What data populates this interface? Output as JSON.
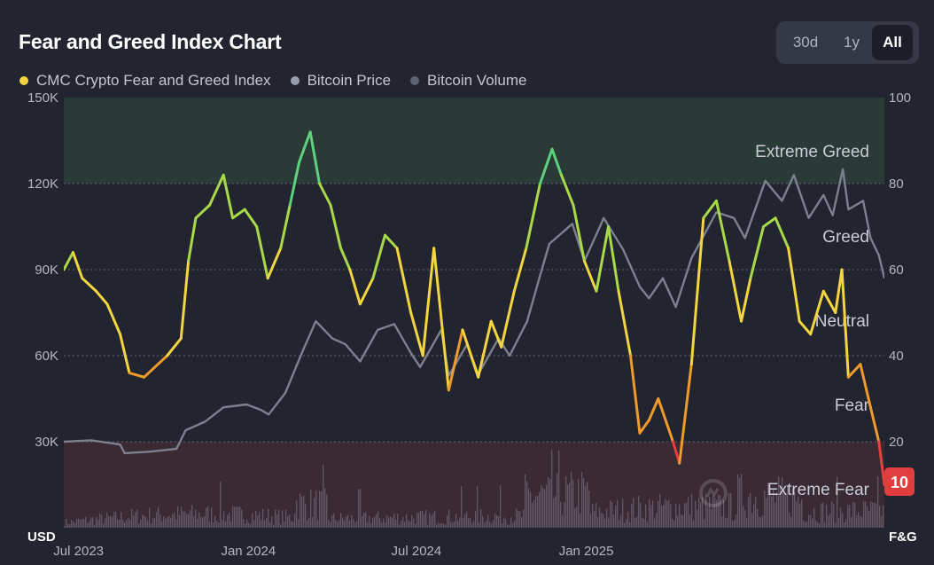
{
  "title": "Fear and Greed Index Chart",
  "range_buttons": [
    {
      "label": "30d",
      "active": false
    },
    {
      "label": "1y",
      "active": false
    },
    {
      "label": "All",
      "active": true
    }
  ],
  "legend": [
    {
      "label": "CMC Crypto Fear and Greed Index",
      "color": "#f3d33f"
    },
    {
      "label": "Bitcoin Price",
      "color": "#9a9dab"
    },
    {
      "label": "Bitcoin Volume",
      "color": "#5e6170"
    }
  ],
  "colors": {
    "background": "#22242f",
    "extreme_greed_zone": "#2a3b37",
    "extreme_fear_zone": "#3a2a33",
    "price_line": "#7d808f",
    "volume_bars": "#6a5f6d",
    "badge": "#e03e3e"
  },
  "watermark_icon": "coinmarketcap-logo-icon",
  "chart_data": {
    "type": "line",
    "left_unit": "USD",
    "right_unit": "F&G",
    "left_ticks": [
      "150K",
      "120K",
      "90K",
      "60K",
      "30K"
    ],
    "right_ticks": [
      "100",
      "80",
      "60",
      "40",
      "20"
    ],
    "x_ticks": [
      "Jul 2023",
      "Jan 2024",
      "Jul 2024",
      "Jan 2025"
    ],
    "x_range": [
      "2023-06-15",
      "2025-11-20"
    ],
    "ylim_price": [
      0,
      150000
    ],
    "ylim_index": [
      0,
      100
    ],
    "grid": true,
    "legend_position": "top-left",
    "zones": [
      {
        "label": "Extreme Greed",
        "from": 80,
        "to": 100
      },
      {
        "label": "Greed",
        "from": 60,
        "to": 80
      },
      {
        "label": "Neutral",
        "from": 40,
        "to": 60
      },
      {
        "label": "Fear",
        "from": 20,
        "to": 40
      },
      {
        "label": "Extreme Fear",
        "from": 0,
        "to": 20
      }
    ],
    "current_value": "10",
    "series": [
      {
        "name": "CMC Crypto Fear and Greed Index",
        "axis": "right",
        "points": [
          [
            "2023-06-15",
            60
          ],
          [
            "2023-06-25",
            64
          ],
          [
            "2023-07-05",
            58
          ],
          [
            "2023-07-20",
            55
          ],
          [
            "2023-08-01",
            52
          ],
          [
            "2023-08-15",
            45
          ],
          [
            "2023-08-25",
            36
          ],
          [
            "2023-09-10",
            35
          ],
          [
            "2023-09-25",
            38
          ],
          [
            "2023-10-05",
            40
          ],
          [
            "2023-10-20",
            44
          ],
          [
            "2023-10-28",
            62
          ],
          [
            "2023-11-05",
            72
          ],
          [
            "2023-11-20",
            75
          ],
          [
            "2023-12-05",
            82
          ],
          [
            "2023-12-15",
            72
          ],
          [
            "2023-12-28",
            74
          ],
          [
            "2024-01-10",
            70
          ],
          [
            "2024-01-22",
            58
          ],
          [
            "2024-02-05",
            65
          ],
          [
            "2024-02-15",
            75
          ],
          [
            "2024-02-25",
            85
          ],
          [
            "2024-03-08",
            92
          ],
          [
            "2024-03-18",
            80
          ],
          [
            "2024-03-30",
            75
          ],
          [
            "2024-04-10",
            65
          ],
          [
            "2024-04-20",
            60
          ],
          [
            "2024-05-01",
            52
          ],
          [
            "2024-05-15",
            58
          ],
          [
            "2024-05-28",
            68
          ],
          [
            "2024-06-10",
            65
          ],
          [
            "2024-06-25",
            50
          ],
          [
            "2024-07-08",
            40
          ],
          [
            "2024-07-20",
            65
          ],
          [
            "2024-08-05",
            32
          ],
          [
            "2024-08-20",
            46
          ],
          [
            "2024-09-06",
            35
          ],
          [
            "2024-09-20",
            48
          ],
          [
            "2024-10-01",
            42
          ],
          [
            "2024-10-15",
            55
          ],
          [
            "2024-10-28",
            65
          ],
          [
            "2024-11-12",
            80
          ],
          [
            "2024-11-25",
            88
          ],
          [
            "2024-12-05",
            82
          ],
          [
            "2024-12-18",
            75
          ],
          [
            "2024-12-30",
            62
          ],
          [
            "2025-01-12",
            55
          ],
          [
            "2025-01-25",
            70
          ],
          [
            "2025-02-05",
            55
          ],
          [
            "2025-02-18",
            40
          ],
          [
            "2025-02-28",
            22
          ],
          [
            "2025-03-10",
            25
          ],
          [
            "2025-03-20",
            30
          ],
          [
            "2025-04-05",
            20
          ],
          [
            "2025-04-12",
            15
          ],
          [
            "2025-04-25",
            38
          ],
          [
            "2025-05-08",
            72
          ],
          [
            "2025-05-22",
            76
          ],
          [
            "2025-06-05",
            62
          ],
          [
            "2025-06-18",
            48
          ],
          [
            "2025-06-28",
            58
          ],
          [
            "2025-07-12",
            70
          ],
          [
            "2025-07-25",
            72
          ],
          [
            "2025-08-08",
            65
          ],
          [
            "2025-08-20",
            48
          ],
          [
            "2025-09-01",
            45
          ],
          [
            "2025-09-15",
            55
          ],
          [
            "2025-09-28",
            50
          ],
          [
            "2025-10-05",
            60
          ],
          [
            "2025-10-12",
            35
          ],
          [
            "2025-10-25",
            38
          ],
          [
            "2025-11-05",
            28
          ],
          [
            "2025-11-14",
            20
          ],
          [
            "2025-11-20",
            10
          ]
        ]
      },
      {
        "name": "Bitcoin Price",
        "axis": "left",
        "points": [
          [
            "2023-06-15",
            30000
          ],
          [
            "2023-07-15",
            30500
          ],
          [
            "2023-08-15",
            29000
          ],
          [
            "2023-08-20",
            26000
          ],
          [
            "2023-09-15",
            26500
          ],
          [
            "2023-10-15",
            27500
          ],
          [
            "2023-10-25",
            34000
          ],
          [
            "2023-11-15",
            37000
          ],
          [
            "2023-12-05",
            42000
          ],
          [
            "2023-12-30",
            43000
          ],
          [
            "2024-01-15",
            41000
          ],
          [
            "2024-01-23",
            39500
          ],
          [
            "2024-02-10",
            47000
          ],
          [
            "2024-02-28",
            61000
          ],
          [
            "2024-03-14",
            72000
          ],
          [
            "2024-04-01",
            66000
          ],
          [
            "2024-04-15",
            64000
          ],
          [
            "2024-05-01",
            58000
          ],
          [
            "2024-05-20",
            69000
          ],
          [
            "2024-06-07",
            71000
          ],
          [
            "2024-06-25",
            61000
          ],
          [
            "2024-07-05",
            56000
          ],
          [
            "2024-07-28",
            69000
          ],
          [
            "2024-08-05",
            53000
          ],
          [
            "2024-08-25",
            64000
          ],
          [
            "2024-09-06",
            53500
          ],
          [
            "2024-09-28",
            66000
          ],
          [
            "2024-10-10",
            60000
          ],
          [
            "2024-10-29",
            72000
          ],
          [
            "2024-11-12",
            88000
          ],
          [
            "2024-11-22",
            99000
          ],
          [
            "2024-12-17",
            106000
          ],
          [
            "2024-12-30",
            93000
          ],
          [
            "2025-01-20",
            108000
          ],
          [
            "2025-02-10",
            97000
          ],
          [
            "2025-02-28",
            84000
          ],
          [
            "2025-03-10",
            80000
          ],
          [
            "2025-03-25",
            87000
          ],
          [
            "2025-04-08",
            77000
          ],
          [
            "2025-04-25",
            94000
          ],
          [
            "2025-05-22",
            110000
          ],
          [
            "2025-06-10",
            108000
          ],
          [
            "2025-06-22",
            101000
          ],
          [
            "2025-07-14",
            121000
          ],
          [
            "2025-08-01",
            114000
          ],
          [
            "2025-08-14",
            123000
          ],
          [
            "2025-08-30",
            108000
          ],
          [
            "2025-09-15",
            116000
          ],
          [
            "2025-09-25",
            109000
          ],
          [
            "2025-10-06",
            125000
          ],
          [
            "2025-10-12",
            111000
          ],
          [
            "2025-10-28",
            114000
          ],
          [
            "2025-11-05",
            101000
          ],
          [
            "2025-11-14",
            95000
          ],
          [
            "2025-11-20",
            87000
          ]
        ]
      }
    ]
  }
}
